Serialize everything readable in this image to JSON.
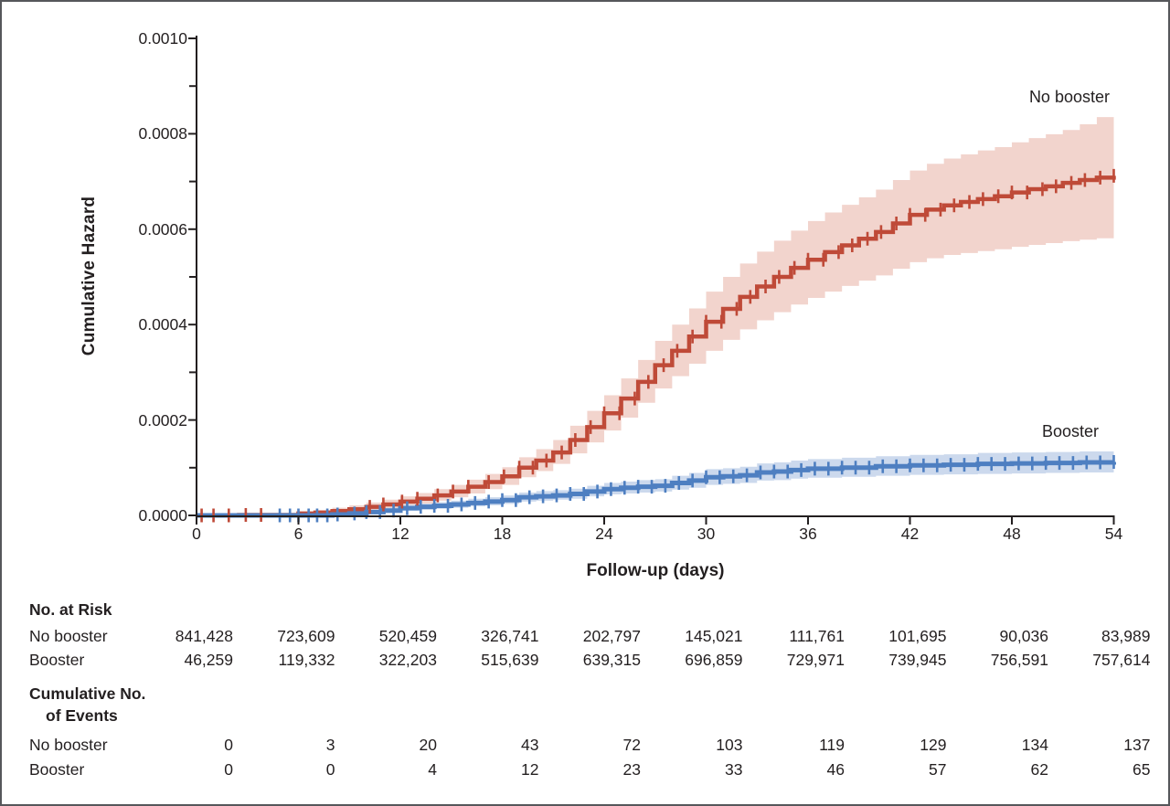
{
  "figure": {
    "background": "#ffffff",
    "border_color": "#56575b",
    "text_color": "#231f20"
  },
  "chart_data": {
    "type": "line",
    "subtype": "step-cumulative-hazard-with-confidence-bands",
    "title": "",
    "xlabel": "Follow-up (days)",
    "ylabel": "Cumulative Hazard",
    "xlim": [
      0,
      54
    ],
    "ylim": [
      0,
      0.001
    ],
    "x_ticks": [
      0,
      6,
      12,
      18,
      24,
      30,
      36,
      42,
      48,
      54
    ],
    "y_ticks": [
      {
        "label": "0.0000",
        "value_e6": 0
      },
      {
        "label": "0.0002",
        "value_e6": 200
      },
      {
        "label": "0.0004",
        "value_e6": 400
      },
      {
        "label": "0.0006",
        "value_e6": 600
      },
      {
        "label": "0.0008",
        "value_e6": 800
      },
      {
        "label": "0.0010",
        "value_e6": 1000
      }
    ],
    "y_minor_ticks_e6": [
      100,
      300,
      500,
      700,
      900
    ],
    "grid": false,
    "legend_position": "inline-labels",
    "value_unit": "hazard, stored as value * 1e-6",
    "series": [
      {
        "name": "no-booster",
        "label": "No booster",
        "color": "#bf4a38",
        "band_color": "#f2d4cd",
        "points_e6": [
          [
            0,
            0,
            0,
            0
          ],
          [
            2.5,
            1,
            0,
            3
          ],
          [
            6,
            4,
            1,
            8
          ],
          [
            7,
            6,
            2,
            11
          ],
          [
            8,
            9,
            4,
            16
          ],
          [
            9,
            13,
            7,
            21
          ],
          [
            10,
            18,
            11,
            27
          ],
          [
            11,
            23,
            15,
            33
          ],
          [
            12,
            29,
            20,
            40
          ],
          [
            13,
            35,
            25,
            47
          ],
          [
            14,
            42,
            31,
            55
          ],
          [
            15,
            50,
            38,
            64
          ],
          [
            16,
            60,
            46,
            75
          ],
          [
            17,
            70,
            55,
            87
          ],
          [
            18,
            82,
            64,
            101
          ],
          [
            19,
            100,
            80,
            122
          ],
          [
            20,
            115,
            93,
            139
          ],
          [
            21,
            132,
            108,
            158
          ],
          [
            22,
            158,
            130,
            188
          ],
          [
            23,
            185,
            153,
            219
          ],
          [
            24,
            214,
            178,
            252
          ],
          [
            25,
            245,
            205,
            287
          ],
          [
            26,
            280,
            236,
            326
          ],
          [
            27,
            315,
            266,
            366
          ],
          [
            28,
            345,
            292,
            400
          ],
          [
            29,
            375,
            318,
            434
          ],
          [
            30,
            406,
            345,
            469
          ],
          [
            31,
            433,
            368,
            500
          ],
          [
            32,
            458,
            390,
            528
          ],
          [
            33,
            480,
            409,
            553
          ],
          [
            34,
            500,
            426,
            576
          ],
          [
            35,
            519,
            442,
            597
          ],
          [
            36,
            536,
            456,
            617
          ],
          [
            37,
            552,
            469,
            635
          ],
          [
            38,
            566,
            481,
            651
          ],
          [
            39,
            580,
            492,
            667
          ],
          [
            40,
            594,
            503,
            683
          ],
          [
            41,
            612,
            517,
            703
          ],
          [
            42,
            630,
            531,
            723
          ],
          [
            43,
            641,
            539,
            737
          ],
          [
            44,
            650,
            546,
            748
          ],
          [
            45,
            657,
            550,
            757
          ],
          [
            46,
            663,
            554,
            765
          ],
          [
            47,
            669,
            558,
            772
          ],
          [
            48,
            677,
            563,
            782
          ],
          [
            49,
            684,
            567,
            791
          ],
          [
            50,
            690,
            571,
            799
          ],
          [
            51,
            697,
            575,
            808
          ],
          [
            52,
            703,
            578,
            820
          ],
          [
            53,
            708,
            581,
            835
          ],
          [
            54,
            712,
            583,
            850
          ]
        ],
        "censor_days": [
          0.3,
          1.0,
          1.9,
          2.9,
          3.8,
          10.2,
          11.0,
          12.1,
          13.0,
          14.2,
          15.1,
          16.0,
          17.2,
          18.1,
          19.0,
          19.8,
          20.6,
          21.5,
          22.3,
          23.2,
          24.0,
          24.9,
          25.8,
          26.6,
          27.5,
          28.3,
          29.2,
          30.0,
          30.9,
          31.8,
          32.6,
          33.5,
          34.3,
          35.2,
          36.0,
          36.9,
          37.8,
          38.6,
          39.5,
          40.3,
          41.2,
          42.0,
          42.9,
          43.8,
          44.6,
          45.5,
          46.3,
          47.2,
          48.0,
          48.9,
          49.8,
          50.6,
          51.5,
          52.3,
          53.2,
          54.0
        ]
      },
      {
        "name": "booster",
        "label": "Booster",
        "color": "#4e7fc1",
        "band_color": "#ccd9ed",
        "points_e6": [
          [
            0,
            0,
            0,
            0
          ],
          [
            8,
            2,
            0,
            5
          ],
          [
            9,
            4,
            1,
            8
          ],
          [
            10,
            7,
            3,
            12
          ],
          [
            11,
            10,
            6,
            16
          ],
          [
            12,
            15,
            10,
            22
          ],
          [
            13,
            18,
            12,
            25
          ],
          [
            14,
            20,
            14,
            28
          ],
          [
            15,
            23,
            16,
            31
          ],
          [
            16,
            26,
            19,
            35
          ],
          [
            17,
            29,
            21,
            38
          ],
          [
            18,
            32,
            24,
            42
          ],
          [
            19,
            38,
            29,
            48
          ],
          [
            20,
            40,
            31,
            51
          ],
          [
            21,
            42,
            33,
            53
          ],
          [
            22,
            45,
            35,
            56
          ],
          [
            23,
            50,
            40,
            62
          ],
          [
            24,
            55,
            44,
            68
          ],
          [
            25,
            58,
            46,
            71
          ],
          [
            26,
            60,
            48,
            74
          ],
          [
            27,
            62,
            50,
            76
          ],
          [
            28,
            68,
            54,
            83
          ],
          [
            29,
            73,
            58,
            89
          ],
          [
            30,
            80,
            64,
            97
          ],
          [
            31,
            82,
            66,
            99
          ],
          [
            32,
            84,
            68,
            102
          ],
          [
            33,
            90,
            73,
            109
          ],
          [
            34,
            92,
            74,
            111
          ],
          [
            35,
            95,
            77,
            115
          ],
          [
            36,
            98,
            79,
            118
          ],
          [
            38,
            100,
            81,
            121
          ],
          [
            40,
            103,
            83,
            124
          ],
          [
            42,
            105,
            85,
            127
          ],
          [
            44,
            106,
            86,
            128
          ],
          [
            46,
            108,
            87,
            131
          ],
          [
            48,
            109,
            88,
            132
          ],
          [
            50,
            110,
            89,
            133
          ],
          [
            52,
            111,
            90,
            134
          ],
          [
            54,
            112,
            90,
            138
          ]
        ],
        "censor_days": [
          4.9,
          5.5,
          6.0,
          6.6,
          7.1,
          7.7,
          8.3,
          9.3,
          10.0,
          10.8,
          11.6,
          12.4,
          13.2,
          14.0,
          14.8,
          15.6,
          16.4,
          17.2,
          18.0,
          18.8,
          19.6,
          20.4,
          21.2,
          22.0,
          22.8,
          23.6,
          24.4,
          25.2,
          26.0,
          26.8,
          27.6,
          28.4,
          29.2,
          30.0,
          30.8,
          31.6,
          32.4,
          33.2,
          34.0,
          34.8,
          35.6,
          36.4,
          37.2,
          38.0,
          38.8,
          39.6,
          40.4,
          41.2,
          42.0,
          42.8,
          43.6,
          44.4,
          45.2,
          46.0,
          46.8,
          47.6,
          48.4,
          49.2,
          50.0,
          50.8,
          51.6,
          52.4,
          53.2,
          54.0
        ]
      }
    ]
  },
  "tables": {
    "at_risk": {
      "title": "No. at Risk",
      "rows": [
        {
          "label": "No booster",
          "values": [
            "841,428",
            "723,609",
            "520,459",
            "326,741",
            "202,797",
            "145,021",
            "111,761",
            "101,695",
            "90,036",
            "83,989"
          ]
        },
        {
          "label": "Booster",
          "values": [
            "46,259",
            "119,332",
            "322,203",
            "515,639",
            "639,315",
            "696,859",
            "729,971",
            "739,945",
            "756,591",
            "757,614"
          ]
        }
      ]
    },
    "events": {
      "title_line1": "Cumulative No.",
      "title_line2": "of Events",
      "rows": [
        {
          "label": "No booster",
          "values": [
            "0",
            "3",
            "20",
            "43",
            "72",
            "103",
            "119",
            "129",
            "134",
            "137"
          ]
        },
        {
          "label": "Booster",
          "values": [
            "0",
            "0",
            "4",
            "12",
            "23",
            "33",
            "46",
            "57",
            "62",
            "65"
          ]
        }
      ]
    }
  }
}
